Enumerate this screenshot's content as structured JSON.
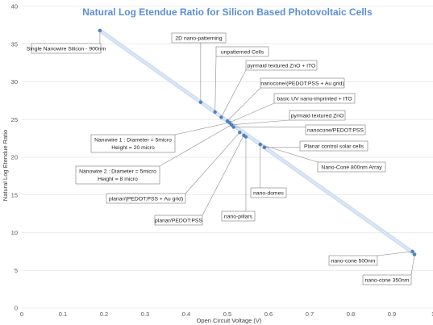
{
  "chart_data": {
    "type": "scatter",
    "title": "Natural Log Etendue Ratio for Silicon Based Photovoltaic Cells",
    "xlabel": "Open Circuit Voltage (V)",
    "ylabel": "Natural Log Etendue Ratio",
    "xlim": [
      0,
      1
    ],
    "ylim": [
      0,
      40
    ],
    "xticks": [
      "0",
      "0.1",
      "0.2",
      "0.3",
      "0.4",
      "0.5",
      "0.6",
      "0.7",
      "0.8",
      "0.9",
      "1"
    ],
    "yticks": [
      "0",
      "5",
      "10",
      "15",
      "20",
      "25",
      "30",
      "35",
      "40"
    ],
    "grid": "horizontal",
    "trendline": {
      "x": [
        0.19,
        0.955
      ],
      "y": [
        36.8,
        7.2
      ]
    },
    "points": [
      {
        "x": 0.19,
        "y": 36.8
      },
      {
        "x": 0.435,
        "y": 27.3
      },
      {
        "x": 0.47,
        "y": 26.0
      },
      {
        "x": 0.485,
        "y": 25.3
      },
      {
        "x": 0.5,
        "y": 24.8
      },
      {
        "x": 0.505,
        "y": 24.6
      },
      {
        "x": 0.51,
        "y": 24.3
      },
      {
        "x": 0.515,
        "y": 24.0
      },
      {
        "x": 0.53,
        "y": 23.3
      },
      {
        "x": 0.54,
        "y": 22.9
      },
      {
        "x": 0.545,
        "y": 22.7
      },
      {
        "x": 0.58,
        "y": 21.7
      },
      {
        "x": 0.59,
        "y": 21.3
      },
      {
        "x": 0.95,
        "y": 7.5
      },
      {
        "x": 0.955,
        "y": 7.1
      }
    ],
    "annotations": [
      {
        "text": "Single Nanowire Silicon - 900nm",
        "x": 0.19,
        "y": 36.8
      },
      {
        "text": "2D nano-patterning",
        "x": 0.435,
        "y": 27.3
      },
      {
        "text": "unpatterned Cells",
        "x": 0.47,
        "y": 26.0
      },
      {
        "text": "pyrmaid textured ZnO + ITO",
        "x": 0.485,
        "y": 25.3
      },
      {
        "text": "nanocone/(PEDOT:PSS + Au grid)",
        "x": 0.5,
        "y": 24.8
      },
      {
        "text": "basic UV nano-imprinted + ITO",
        "x": 0.505,
        "y": 24.6
      },
      {
        "text": "pyrmaid textured ZnO",
        "x": 0.51,
        "y": 24.3
      },
      {
        "text": "nanocone/PEDOT:PSS",
        "x": 0.515,
        "y": 24.0
      },
      {
        "text": "Planar control solar cells",
        "x": 0.59,
        "y": 21.3
      },
      {
        "text": "Nano-Cone 800nm Array",
        "x": 0.58,
        "y": 21.7
      },
      {
        "text": "Nanowire 1 : Diameter = 5micro",
        "text2": "Height = 20 micro",
        "x": 0.505,
        "y": 24.6
      },
      {
        "text": "Nanowire 2 : Diameter = 5micro",
        "text2": "Height = 8 micro",
        "x": 0.51,
        "y": 24.3
      },
      {
        "text": "nano-domes",
        "x": 0.58,
        "y": 21.7
      },
      {
        "text": "planar/(PEDOT:PSS + Au grid)",
        "x": 0.53,
        "y": 23.3
      },
      {
        "text": "planar/PEDOT:PSS",
        "x": 0.54,
        "y": 22.9
      },
      {
        "text": "nano-pillars",
        "x": 0.545,
        "y": 22.7
      },
      {
        "text": "nano-cone 500nm",
        "x": 0.95,
        "y": 7.5
      },
      {
        "text": "nano-cone 350nm",
        "x": 0.955,
        "y": 7.1
      }
    ],
    "colors": {
      "points": "#4f81bd",
      "trend": "#c6d9f1",
      "title": "#5b8fd6"
    }
  }
}
